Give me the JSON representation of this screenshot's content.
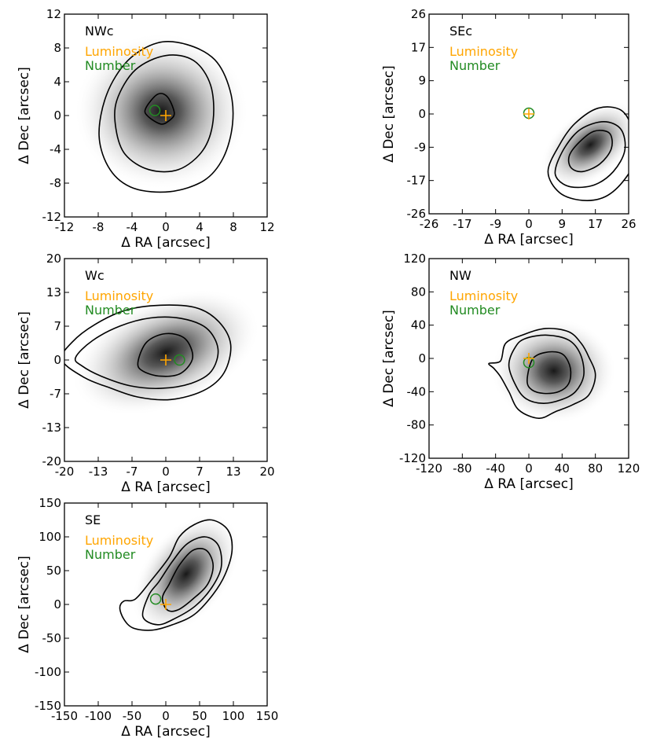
{
  "colors": {
    "luminosity": "#ffa500",
    "number": "#228b22",
    "contour": "#000000"
  },
  "chart_data": [
    {
      "type": "contour",
      "panel_label": "NWc",
      "legend": [
        "Luminosity",
        "Number"
      ],
      "xlabel": "Δ RA [arcsec]",
      "ylabel": "Δ Dec [arcsec]",
      "xlim": [
        -12,
        12
      ],
      "ylim": [
        -12,
        12
      ],
      "xticks": [
        "-12",
        "-8",
        "-4",
        "0",
        "4",
        "8",
        "12"
      ],
      "yticks": [
        "12",
        "8",
        "4",
        "0",
        "-4",
        "-8",
        "-12"
      ],
      "luminosity_center": [
        0,
        0
      ],
      "number_center": [
        -1.3,
        0.6
      ],
      "peak": [
        -0.5,
        0.5
      ],
      "contours": [
        [
          [
            -7.0,
            2.5
          ],
          [
            -4.5,
            6.5
          ],
          [
            -1,
            8.6
          ],
          [
            2.5,
            8.4
          ],
          [
            5.8,
            6.6
          ],
          [
            7.6,
            3
          ],
          [
            7.9,
            -1
          ],
          [
            6.8,
            -5
          ],
          [
            4.5,
            -7.7
          ],
          [
            0.5,
            -9.0
          ],
          [
            -3.8,
            -8.6
          ],
          [
            -6.6,
            -6.4
          ],
          [
            -7.9,
            -2.4
          ]
        ],
        [
          [
            -5.8,
            1.8
          ],
          [
            -3.6,
            5.4
          ],
          [
            0,
            7.1
          ],
          [
            3.3,
            6.5
          ],
          [
            5.3,
            3.6
          ],
          [
            5.6,
            -0.6
          ],
          [
            4.4,
            -4.1
          ],
          [
            1.5,
            -6.4
          ],
          [
            -2,
            -6.4
          ],
          [
            -4.8,
            -4.6
          ],
          [
            -5.9,
            -1.6
          ]
        ],
        [
          [
            -2.4,
            0.8
          ],
          [
            -1.0,
            2.5
          ],
          [
            0.2,
            2.2
          ],
          [
            1.0,
            0.3
          ],
          [
            0.4,
            -0.6
          ],
          [
            -0.6,
            -1.0
          ],
          [
            -2.1,
            -0.1
          ]
        ]
      ]
    },
    {
      "type": "contour",
      "panel_label": "SEc",
      "legend": [
        "Luminosity",
        "Number"
      ],
      "xlabel": "Δ RA [arcsec]",
      "ylabel": "Δ Dec [arcsec]",
      "xlim": [
        -26,
        26
      ],
      "ylim": [
        -26,
        26
      ],
      "xticks": [
        "-26",
        "-17",
        "-9",
        "0",
        "9",
        "17",
        "26"
      ],
      "yticks": [
        "26",
        "17",
        "9",
        "0",
        "-9",
        "-17",
        "-26"
      ],
      "luminosity_center": [
        0,
        0
      ],
      "number_center": [
        0,
        0.2
      ],
      "peak": [
        16,
        -8
      ],
      "contours": [
        [
          [
            5,
            -15
          ],
          [
            8,
            -8
          ],
          [
            12,
            -2.5
          ],
          [
            18,
            1.5
          ],
          [
            24,
            1
          ],
          [
            27,
            -4
          ],
          [
            28,
            -11
          ],
          [
            25,
            -17
          ],
          [
            20,
            -21.5
          ],
          [
            14,
            -22.5
          ],
          [
            8,
            -20.5
          ]
        ],
        [
          [
            7,
            -14
          ],
          [
            9.5,
            -8.5
          ],
          [
            13.5,
            -4
          ],
          [
            19.5,
            -2
          ],
          [
            24,
            -4
          ],
          [
            25,
            -9.5
          ],
          [
            22,
            -15
          ],
          [
            17,
            -18.5
          ],
          [
            11,
            -19
          ],
          [
            7.5,
            -17
          ]
        ],
        [
          [
            10.5,
            -11
          ],
          [
            13,
            -7.5
          ],
          [
            17,
            -4.5
          ],
          [
            21,
            -5
          ],
          [
            21.5,
            -9
          ],
          [
            18.5,
            -13
          ],
          [
            14,
            -15
          ],
          [
            11,
            -14
          ]
        ]
      ]
    },
    {
      "type": "contour",
      "panel_label": "Wc",
      "legend": [
        "Luminosity",
        "Number"
      ],
      "xlabel": "Δ RA [arcsec]",
      "ylabel": "Δ Dec [arcsec]",
      "xlim": [
        -20,
        20
      ],
      "ylim": [
        -20,
        20
      ],
      "xticks": [
        "-20",
        "-13",
        "-7",
        "0",
        "7",
        "13",
        "20"
      ],
      "yticks": [
        "20",
        "13",
        "7",
        "0",
        "-7",
        "-13",
        "-20"
      ],
      "luminosity_center": [
        0,
        0
      ],
      "number_center": [
        2.7,
        0
      ],
      "peak": [
        0,
        1.5
      ],
      "contours": [
        [
          [
            -20.5,
            0
          ],
          [
            -18.5,
            3.5
          ],
          [
            -14,
            7
          ],
          [
            -8,
            9.8
          ],
          [
            -1,
            10.8
          ],
          [
            6,
            10.3
          ],
          [
            10.5,
            7.5
          ],
          [
            12.8,
            3
          ],
          [
            11.5,
            -2.5
          ],
          [
            7.5,
            -6
          ],
          [
            1,
            -7.8
          ],
          [
            -5.5,
            -7.3
          ],
          [
            -11,
            -5.5
          ],
          [
            -16,
            -3.5
          ]
        ],
        [
          [
            -17.8,
            0.5
          ],
          [
            -14.5,
            3.8
          ],
          [
            -9,
            6.7
          ],
          [
            -3,
            8.3
          ],
          [
            3,
            8.2
          ],
          [
            8,
            6.3
          ],
          [
            10.3,
            2.2
          ],
          [
            9,
            -2.2
          ],
          [
            5,
            -4.6
          ],
          [
            -1,
            -5.6
          ],
          [
            -7,
            -5.1
          ],
          [
            -12.5,
            -3.3
          ],
          [
            -16.5,
            -1.2
          ]
        ],
        [
          [
            -5.5,
            -0.5
          ],
          [
            -3.8,
            3.5
          ],
          [
            0,
            5.2
          ],
          [
            3.8,
            4.2
          ],
          [
            5.3,
            0.5
          ],
          [
            3,
            -2.6
          ],
          [
            -1,
            -3.2
          ],
          [
            -4.5,
            -2.2
          ]
        ]
      ]
    },
    {
      "type": "contour",
      "panel_label": "NW",
      "legend": [
        "Luminosity",
        "Number"
      ],
      "xlabel": "Δ RA [arcsec]",
      "ylabel": "Δ Dec [arcsec]",
      "xlim": [
        -120,
        120
      ],
      "ylim": [
        -120,
        120
      ],
      "xticks": [
        "-120",
        "-80",
        "-40",
        "0",
        "40",
        "80",
        "120"
      ],
      "yticks": [
        "120",
        "80",
        "40",
        "0",
        "-40",
        "-80",
        "-120"
      ],
      "luminosity_center": [
        0,
        0
      ],
      "number_center": [
        0,
        -5
      ],
      "peak": [
        30,
        -15
      ],
      "contours": [
        [
          [
            -48,
            -6
          ],
          [
            -34,
            -3
          ],
          [
            -28,
            18
          ],
          [
            -8,
            28
          ],
          [
            20,
            36
          ],
          [
            48,
            32
          ],
          [
            63,
            18
          ],
          [
            72,
            2
          ],
          [
            80,
            -20
          ],
          [
            72,
            -44
          ],
          [
            52,
            -56
          ],
          [
            32,
            -64
          ],
          [
            12,
            -72
          ],
          [
            -12,
            -62
          ],
          [
            -24,
            -40
          ],
          [
            -34,
            -22
          ],
          [
            -42,
            -12
          ]
        ],
        [
          [
            -24,
            -8
          ],
          [
            -16,
            14
          ],
          [
            -4,
            24
          ],
          [
            22,
            28
          ],
          [
            48,
            22
          ],
          [
            62,
            5
          ],
          [
            66,
            -20
          ],
          [
            56,
            -40
          ],
          [
            38,
            -50
          ],
          [
            16,
            -54
          ],
          [
            -4,
            -48
          ],
          [
            -16,
            -32
          ]
        ],
        [
          [
            -2,
            -28
          ],
          [
            2,
            -6
          ],
          [
            10,
            4
          ],
          [
            28,
            8
          ],
          [
            42,
            4
          ],
          [
            50,
            -12
          ],
          [
            48,
            -30
          ],
          [
            36,
            -40
          ],
          [
            18,
            -42
          ],
          [
            4,
            -38
          ]
        ]
      ]
    },
    {
      "type": "contour",
      "panel_label": "SE",
      "legend": [
        "Luminosity",
        "Number"
      ],
      "xlabel": "Δ RA [arcsec]",
      "ylabel": "Δ Dec [arcsec]",
      "xlim": [
        -150,
        150
      ],
      "ylim": [
        -150,
        150
      ],
      "xticks": [
        "-150",
        "-100",
        "-50",
        "0",
        "50",
        "100",
        "150"
      ],
      "yticks": [
        "150",
        "100",
        "50",
        "0",
        "-50",
        "-100",
        "-150"
      ],
      "luminosity_center": [
        0,
        0
      ],
      "number_center": [
        -15,
        8
      ],
      "peak": [
        30,
        45
      ],
      "contours": [
        [
          [
            -68,
            -5
          ],
          [
            -62,
            5
          ],
          [
            -45,
            8
          ],
          [
            -22,
            35
          ],
          [
            5,
            70
          ],
          [
            20,
            100
          ],
          [
            42,
            118
          ],
          [
            68,
            125
          ],
          [
            92,
            110
          ],
          [
            98,
            80
          ],
          [
            88,
            45
          ],
          [
            70,
            15
          ],
          [
            42,
            -15
          ],
          [
            10,
            -30
          ],
          [
            -20,
            -38
          ],
          [
            -48,
            -35
          ],
          [
            -62,
            -22
          ]
        ],
        [
          [
            -34,
            -18
          ],
          [
            -25,
            14
          ],
          [
            -10,
            34
          ],
          [
            10,
            64
          ],
          [
            32,
            90
          ],
          [
            58,
            100
          ],
          [
            78,
            87
          ],
          [
            82,
            55
          ],
          [
            68,
            25
          ],
          [
            44,
            -2
          ],
          [
            15,
            -20
          ],
          [
            -12,
            -30
          ]
        ],
        [
          [
            -5,
            10
          ],
          [
            5,
            30
          ],
          [
            20,
            58
          ],
          [
            40,
            80
          ],
          [
            60,
            80
          ],
          [
            70,
            58
          ],
          [
            62,
            30
          ],
          [
            40,
            8
          ],
          [
            18,
            -8
          ],
          [
            2,
            -8
          ]
        ]
      ]
    }
  ]
}
